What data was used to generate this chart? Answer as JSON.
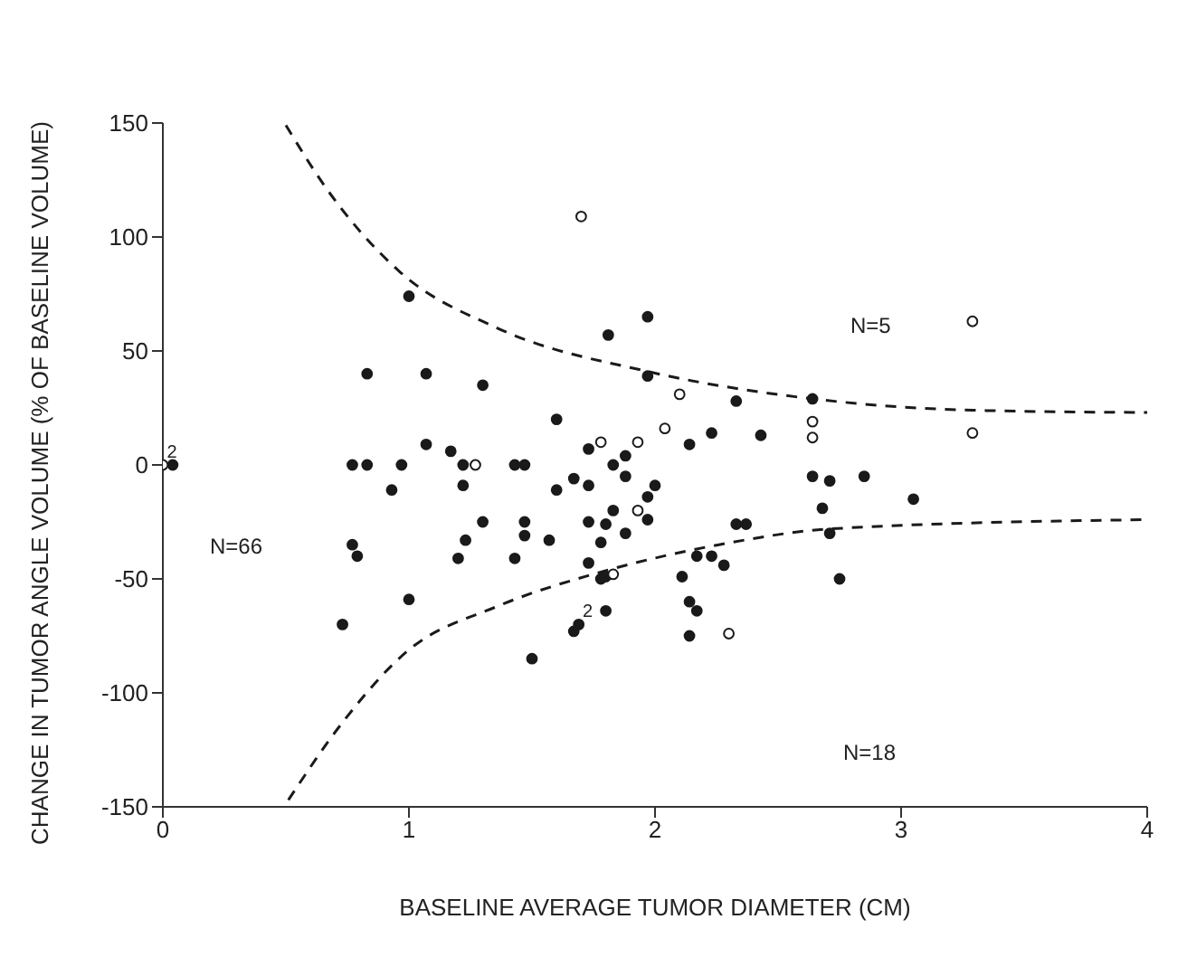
{
  "chart_data": {
    "type": "scatter",
    "xlabel": "BASELINE AVERAGE TUMOR DIAMETER (CM)",
    "ylabel": "CHANGE IN TUMOR ANGLE VOLUME (% OF BASELINE VOLUME)",
    "xlim": [
      0,
      4
    ],
    "xticks": [
      0,
      1,
      2,
      3,
      4
    ],
    "ylim": [
      -150,
      150
    ],
    "yticks": [
      -150,
      -100,
      -50,
      0,
      50,
      100,
      150
    ],
    "grid": false,
    "legend": false,
    "marker": "circle",
    "series": [
      {
        "color": "#1a1a1a",
        "x": [
          0.04,
          0.77,
          0.83,
          0.97,
          1.22,
          1.43,
          1.47,
          1.0,
          0.83,
          1.07,
          1.3,
          1.97,
          1.81,
          1.97,
          1.6,
          1.07,
          1.17,
          1.73,
          1.88,
          1.83,
          2.33,
          2.64,
          2.14,
          2.23,
          2.43,
          1.88,
          2.0,
          2.64,
          2.71,
          2.85,
          1.22,
          0.93,
          1.6,
          1.67,
          1.73,
          1.97,
          1.97,
          1.3,
          1.47,
          1.47,
          1.57,
          1.73,
          1.83,
          1.8,
          1.88,
          1.78,
          1.23,
          1.2,
          1.43,
          0.77,
          0.79,
          1.73,
          1.78,
          1.8,
          1.0,
          0.73,
          1.69,
          1.67,
          1.8,
          1.5,
          3.05,
          2.68,
          2.71,
          2.75,
          2.33,
          2.37,
          2.17,
          2.23,
          2.28,
          2.11,
          2.14,
          2.17,
          2.14
        ],
        "values": [
          0,
          0,
          0,
          0,
          0,
          0,
          0,
          74,
          40,
          40,
          35,
          65,
          57,
          39,
          20,
          9,
          6,
          7,
          4,
          0,
          28,
          29,
          9,
          14,
          13,
          -5,
          -9,
          -5,
          -7,
          -5,
          -9,
          -11,
          -11,
          -6,
          -9,
          -14,
          -24,
          -25,
          -25,
          -31,
          -33,
          -25,
          -20,
          -26,
          -30,
          -34,
          -33,
          -41,
          -41,
          -35,
          -40,
          -43,
          -50,
          -49,
          -59,
          -70,
          -70,
          -73,
          -64,
          -85,
          -15,
          -19,
          -30,
          -50,
          -26,
          -26,
          -40,
          -40,
          -44,
          -49,
          -60,
          -64,
          -75
        ]
      },
      {
        "color": "#ffffff",
        "x": [
          0,
          1.27,
          1.7,
          1.78,
          1.93,
          2.04,
          2.1,
          2.64,
          2.64,
          3.29,
          3.29,
          1.93,
          1.83,
          2.3
        ],
        "values": [
          0,
          0,
          109,
          10,
          10,
          16,
          31,
          19,
          12,
          63,
          14,
          -20,
          -48,
          -74
        ]
      },
      {
        "type": "line",
        "color": "#1a1a1a",
        "line_style": "dashed",
        "marker": "none",
        "x": [
          0.5,
          0.66,
          0.96,
          1.36,
          1.97,
          2.64,
          3.29,
          4.0
        ],
        "values": [
          149,
          122,
          85,
          60,
          41,
          29,
          24,
          23
        ]
      },
      {
        "type": "line",
        "color": "#1a1a1a",
        "line_style": "dashed",
        "marker": "none",
        "x": [
          0.51,
          0.73,
          0.99,
          1.36,
          1.78,
          2.26,
          2.72,
          4.0
        ],
        "values": [
          -147,
          -113,
          -82,
          -62,
          -47,
          -35,
          -28,
          -24
        ]
      }
    ],
    "annotations": [
      "N=5",
      "N=66",
      "N=18",
      {
        "text": "2",
        "x": 0,
        "y": 0
      },
      {
        "text": "2",
        "x": 1.69,
        "y": -70
      }
    ]
  }
}
